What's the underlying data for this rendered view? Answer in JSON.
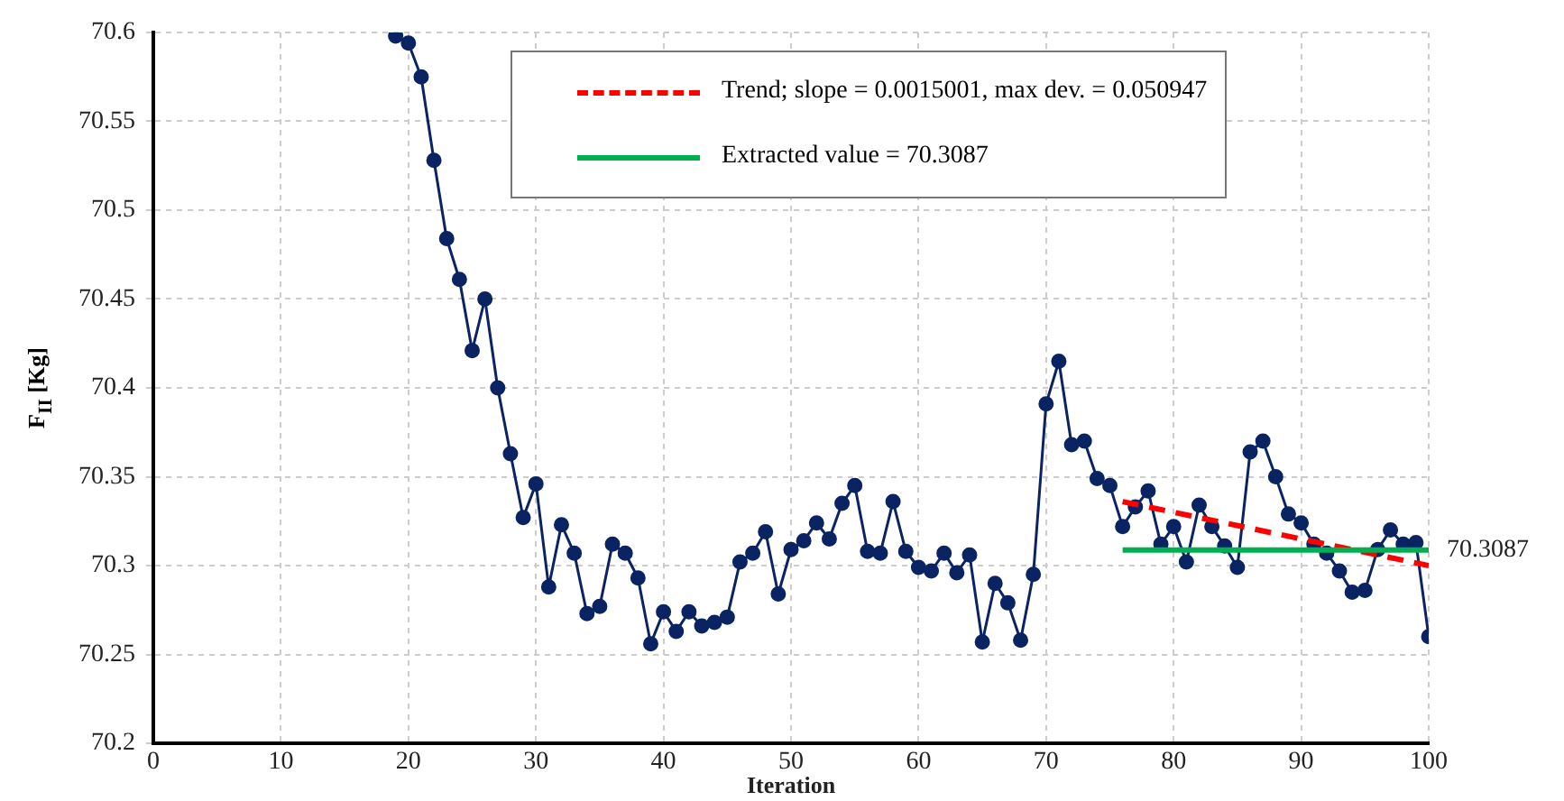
{
  "chart_data": {
    "type": "line",
    "xlabel": "Iteration",
    "ylabel": "F$_{II}$ [Kg]",
    "xlim": [
      0,
      100
    ],
    "xticks": [
      0,
      10,
      20,
      30,
      40,
      50,
      60,
      70,
      80,
      90,
      100
    ],
    "ylim": [
      70.2,
      70.6
    ],
    "yticks": [
      70.2,
      70.25,
      70.3,
      70.35,
      70.4,
      70.45,
      70.5,
      70.55,
      70.6
    ],
    "grid": true,
    "legend": "top right",
    "annotations": [
      {
        "text": "70.3087",
        "x": 100,
        "y": 70.3087
      }
    ],
    "series": [
      {
        "color": "#0a2463",
        "marker": "circle",
        "line_style": "solid",
        "x": [
          19,
          20,
          21,
          22,
          23,
          24,
          25,
          26,
          27,
          28,
          29,
          30,
          31,
          32,
          33,
          34,
          35,
          36,
          37,
          38,
          39,
          40,
          41,
          42,
          43,
          44,
          45,
          46,
          47,
          48,
          49,
          50,
          51,
          52,
          53,
          54,
          55,
          56,
          57,
          58,
          59,
          60,
          61,
          62,
          63,
          64,
          65,
          66,
          67,
          68,
          69,
          70,
          71,
          72,
          73,
          74,
          75,
          76,
          77,
          78,
          79,
          80,
          81,
          82,
          83,
          84,
          85,
          86,
          87,
          88,
          89,
          90,
          91,
          92,
          93,
          94,
          95,
          96,
          97,
          98,
          99,
          100
        ],
        "values": [
          70.598,
          70.594,
          70.575,
          70.528,
          70.484,
          70.461,
          70.421,
          70.45,
          70.4,
          70.363,
          70.327,
          70.346,
          70.288,
          70.323,
          70.307,
          70.273,
          70.277,
          70.312,
          70.307,
          70.293,
          70.256,
          70.274,
          70.263,
          70.274,
          70.266,
          70.268,
          70.271,
          70.302,
          70.307,
          70.319,
          70.284,
          70.309,
          70.314,
          70.324,
          70.315,
          70.335,
          70.345,
          70.308,
          70.307,
          70.336,
          70.308,
          70.299,
          70.297,
          70.307,
          70.296,
          70.306,
          70.257,
          70.29,
          70.279,
          70.258,
          70.295,
          70.391,
          70.415,
          70.368,
          70.37,
          70.349,
          70.345,
          70.322,
          70.333,
          70.342,
          70.312,
          70.322,
          70.302,
          70.334,
          70.322,
          70.311,
          70.299,
          70.364,
          70.37,
          70.35,
          70.329,
          70.324,
          70.312,
          70.307,
          70.297,
          70.285,
          70.286,
          70.309,
          70.32,
          70.312,
          70.313,
          70.26
        ]
      },
      {
        "name": "Trend; slope = 0.0015001, max dev. = 0.050947",
        "color": "#ff0000",
        "marker": "none",
        "line_style": "dashed",
        "x": [
          76,
          100
        ],
        "values": [
          70.336,
          70.3
        ]
      },
      {
        "name": "Extracted value = 70.3087",
        "color": "#00b050",
        "marker": "none",
        "line_style": "solid",
        "x": [
          76,
          100
        ],
        "values": [
          70.3087,
          70.3087
        ]
      }
    ]
  }
}
